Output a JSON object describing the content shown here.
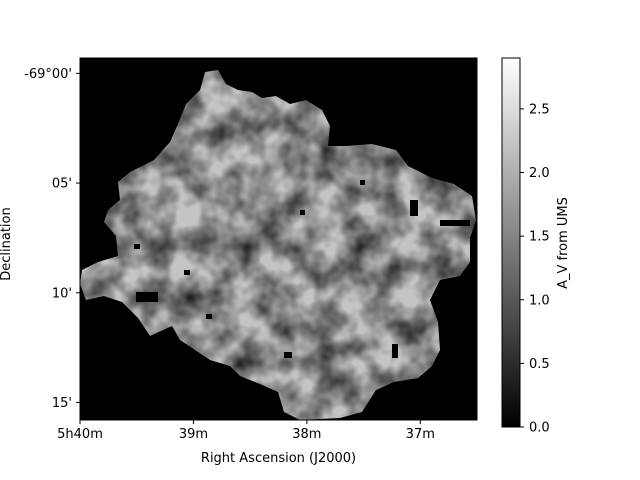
{
  "chart_data": {
    "type": "heatmap",
    "title": "",
    "xlabel": "Right Ascension (J2000)",
    "ylabel": "Declination",
    "x_ticks": [
      {
        "label": "5h40m",
        "ra_min": 340.0
      },
      {
        "label": "39m",
        "ra_min": 339.0
      },
      {
        "label": "38m",
        "ra_min": 338.0
      },
      {
        "label": "37m",
        "ra_min": 337.0
      }
    ],
    "y_ticks": [
      {
        "label": "-69°00'",
        "dec_arcmin": 0
      },
      {
        "label": "05'",
        "dec_arcmin": 5
      },
      {
        "label": "10'",
        "dec_arcmin": 10
      },
      {
        "label": "15'",
        "dec_arcmin": 15
      }
    ],
    "xlim_ra_min": [
      340.0,
      336.5
    ],
    "ylim_dec_arcmin_below_69deg": [
      15.8,
      -0.7
    ],
    "colorbar": {
      "label": "A_V from UMS",
      "colormap": "gray",
      "vmin": 0.0,
      "vmax": 2.9,
      "ticks": [
        "0.0",
        "0.5",
        "1.0",
        "1.5",
        "2.0",
        "2.5"
      ],
      "tick_values": [
        0.0,
        0.5,
        1.0,
        1.5,
        2.0,
        2.5
      ]
    },
    "background_value": 0.0,
    "map_note_typical_range": [
      1.2,
      2.8
    ]
  }
}
